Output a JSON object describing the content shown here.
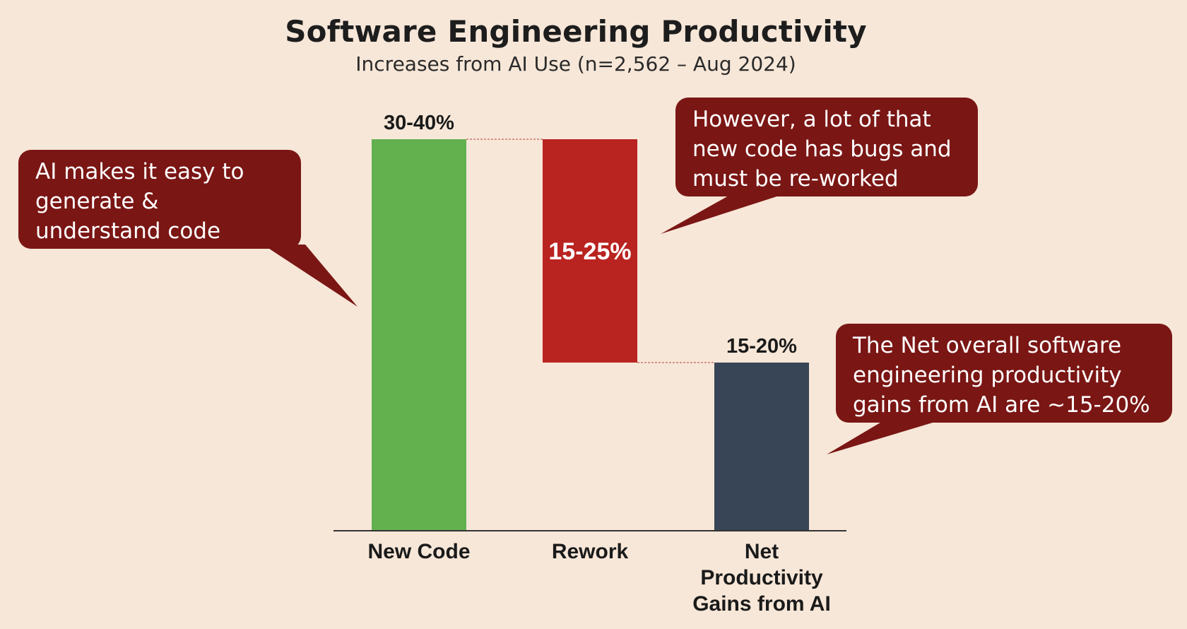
{
  "chart_data": {
    "type": "bar",
    "subtype": "waterfall",
    "title": "Software Engineering Productivity",
    "subtitle": "Increases from AI Use (n=2,562 – Aug 2024)",
    "categories": [
      "New Code",
      "Rework",
      "Net Productivity Gains from AI"
    ],
    "category_lines": [
      [
        "New Code"
      ],
      [
        "Rework"
      ],
      [
        "Net",
        "Productivity",
        "Gains from AI"
      ]
    ],
    "bars": [
      {
        "category": "New Code",
        "start": 0,
        "end": 35,
        "label": "30-40%",
        "color": "#63b04f"
      },
      {
        "category": "Rework",
        "start": 35,
        "end": 15,
        "label": "15-25%",
        "color": "#b92320"
      },
      {
        "category": "Net Productivity Gains from AI",
        "start": 0,
        "end": 15,
        "label": "15-20%",
        "color": "#384556"
      }
    ],
    "ylim": [
      0,
      35
    ],
    "xlabel": "",
    "ylabel": "",
    "grid": false,
    "connector_color": "#c9786e"
  },
  "callouts": {
    "left": "AI makes it easy to\ngenerate &\nunderstand code",
    "top_right": "However, a lot of that\nnew code has bugs and\nmust be re-worked",
    "bottom_right": "The Net overall software\nengineering productivity\ngains from AI are ~15-20%"
  },
  "colors": {
    "background": "#f7e7d8",
    "callout": "#7a1614",
    "axis": "#333333"
  }
}
